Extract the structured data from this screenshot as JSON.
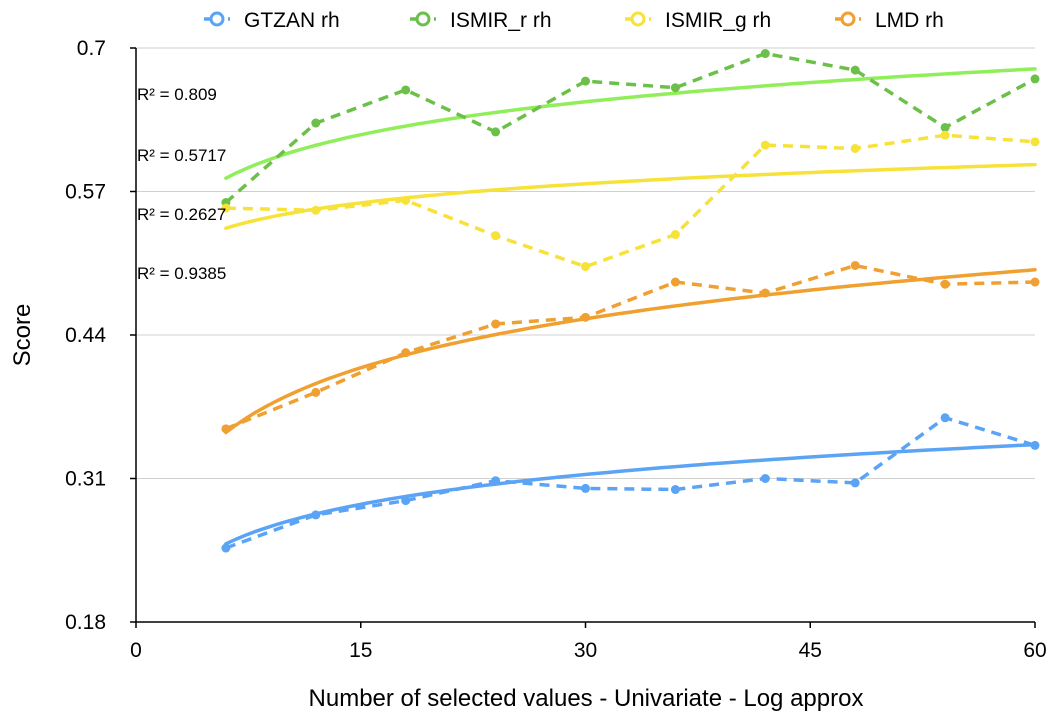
{
  "chart_data": {
    "type": "line",
    "title": "",
    "xlabel": "Number of selected values - Univariate - Log approx",
    "ylabel": "Score",
    "xlim": [
      0,
      60
    ],
    "ylim": [
      0.18,
      0.7
    ],
    "xticks": [
      0,
      15,
      30,
      45,
      60
    ],
    "yticks": [
      0.18,
      0.31,
      0.44,
      0.57,
      0.7
    ],
    "ytick_labels": [
      "0.18",
      "0.31",
      "0.44",
      "0.57",
      "0.7"
    ],
    "grid": "horizontal",
    "legend_position": "top",
    "x": [
      6,
      12,
      18,
      24,
      30,
      36,
      42,
      48,
      54,
      60
    ],
    "series": [
      {
        "name": "GTZAN rh",
        "color": "#5ba3f5",
        "trend_color": "#5ba3f5",
        "values": [
          0.247,
          0.277,
          0.29,
          0.308,
          0.301,
          0.3,
          0.31,
          0.306,
          0.365,
          0.34
        ],
        "trend": {
          "type": "log",
          "r2": "R² = 0.9385",
          "a": 0.181,
          "b": 0.039
        }
      },
      {
        "name": "ISMIR_r rh",
        "color": "#6cc04a",
        "trend_color": "#90ee5a",
        "values": [
          0.56,
          0.632,
          0.662,
          0.624,
          0.67,
          0.664,
          0.695,
          0.68,
          0.628,
          0.672
        ],
        "trend": {
          "type": "log",
          "r2": "R² = 0.809",
          "a": 0.505,
          "b": 0.043
        }
      },
      {
        "name": "ISMIR_g rh",
        "color": "#f7e23a",
        "trend_color": "#f7e23a",
        "values": [
          0.555,
          0.553,
          0.562,
          0.53,
          0.502,
          0.531,
          0.612,
          0.609,
          0.621,
          0.615
        ],
        "trend": {
          "type": "log",
          "r2": "R² = 0.2627",
          "a": 0.492,
          "b": 0.025
        }
      },
      {
        "name": "LMD rh",
        "color": "#f0a030",
        "trend_color": "#f0a030",
        "values": [
          0.355,
          0.388,
          0.424,
          0.45,
          0.456,
          0.488,
          0.478,
          0.503,
          0.486,
          0.488
        ],
        "trend": {
          "type": "log",
          "r2": "R² = 0.5717",
          "a": 0.237,
          "b": 0.064
        }
      }
    ],
    "annotations": [
      {
        "text": "R² = 0.809",
        "series": "ISMIR_r rh"
      },
      {
        "text": "R² = 0.5717",
        "series": "LMD rh"
      },
      {
        "text": "R² = 0.2627",
        "series": "ISMIR_g rh"
      },
      {
        "text": "R² = 0.9385",
        "series": "GTZAN rh"
      }
    ]
  }
}
